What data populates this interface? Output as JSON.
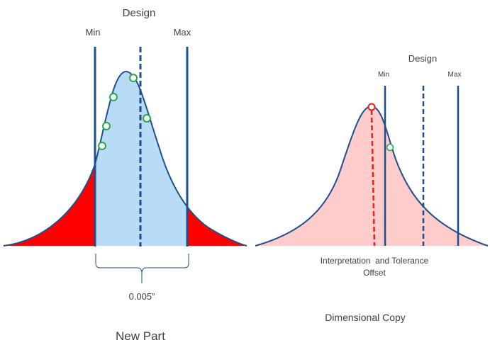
{
  "left_panel": {
    "design_label": "Design",
    "min_label": "Min",
    "max_label": "Max",
    "tolerance_label": "0.005”",
    "caption": "New Part"
  },
  "right_panel": {
    "design_label": "Design",
    "min_label": "Min",
    "max_label": "Max",
    "offset_label_line1": "Interpretation  and Tolerance",
    "offset_label_line2": "Offset",
    "caption": "Dimensional Copy"
  },
  "colors": {
    "curve": "#1f4e8c",
    "in_tolerance_fill": "#b8dcf8",
    "out_of_tolerance_fill": "#ff0000",
    "copy_fill": "#ffcccc",
    "sample_point": "#22aa44",
    "offset_marker": "#e82020"
  }
}
